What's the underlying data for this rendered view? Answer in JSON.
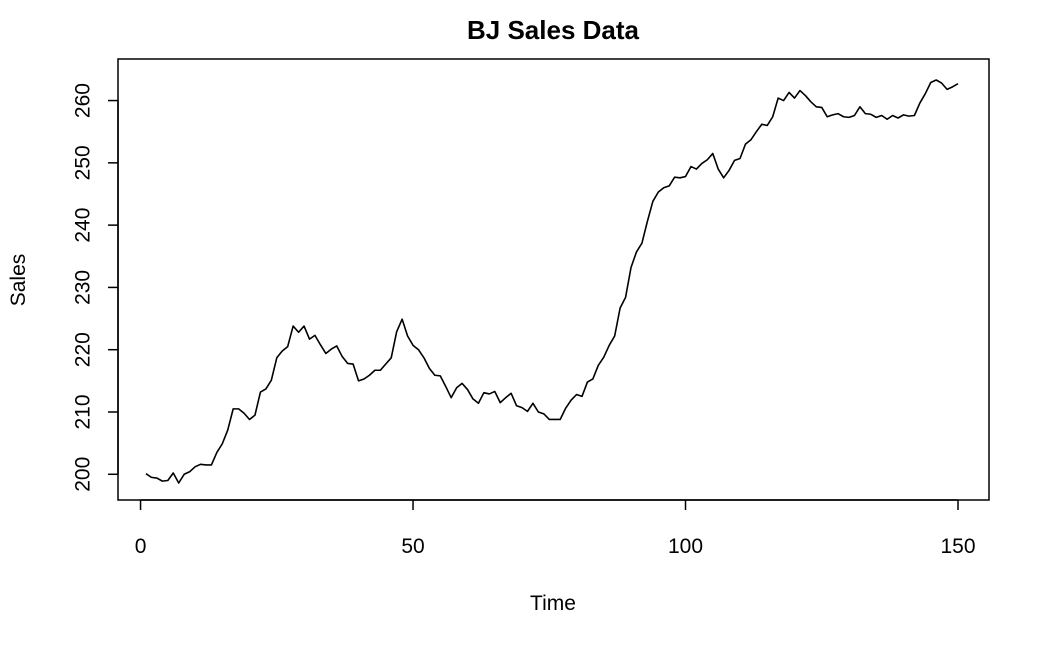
{
  "chart_data": {
    "type": "line",
    "title": "BJ Sales Data",
    "xlabel": "Time",
    "ylabel": "Sales",
    "xlim": [
      1,
      150
    ],
    "ylim": [
      198.6,
      263.3
    ],
    "x_ticks": [
      0,
      50,
      100,
      150
    ],
    "y_ticks": [
      200,
      210,
      220,
      230,
      240,
      250,
      260
    ],
    "grid": false,
    "legend": "none",
    "line_color": "#000000",
    "series": [
      {
        "x": [
          1,
          2,
          3,
          4,
          5,
          6,
          7,
          8,
          9,
          10,
          11,
          12,
          13,
          14,
          15,
          16,
          17,
          18,
          19,
          20,
          21,
          22,
          23,
          24,
          25,
          26,
          27,
          28,
          29,
          30,
          31,
          32,
          33,
          34,
          35,
          36,
          37,
          38,
          39,
          40,
          41,
          42,
          43,
          44,
          45,
          46,
          47,
          48,
          49,
          50,
          51,
          52,
          53,
          54,
          55,
          56,
          57,
          58,
          59,
          60,
          61,
          62,
          63,
          64,
          65,
          66,
          67,
          68,
          69,
          70,
          71,
          72,
          73,
          74,
          75,
          76,
          77,
          78,
          79,
          80,
          81,
          82,
          83,
          84,
          85,
          86,
          87,
          88,
          89,
          90,
          91,
          92,
          93,
          94,
          95,
          96,
          97,
          98,
          99,
          100,
          101,
          102,
          103,
          104,
          105,
          106,
          107,
          108,
          109,
          110,
          111,
          112,
          113,
          114,
          115,
          116,
          117,
          118,
          119,
          120,
          121,
          122,
          123,
          124,
          125,
          126,
          127,
          128,
          129,
          130,
          131,
          132,
          133,
          134,
          135,
          136,
          137,
          138,
          139,
          140,
          141,
          142,
          143,
          144,
          145,
          146,
          147,
          148,
          149,
          150
        ],
        "values": [
          200.1,
          199.5,
          199.4,
          198.9,
          199.0,
          200.2,
          198.6,
          200.0,
          200.4,
          201.2,
          201.6,
          201.5,
          201.5,
          203.5,
          204.9,
          207.1,
          210.5,
          210.5,
          209.8,
          208.8,
          209.5,
          213.2,
          213.7,
          215.1,
          218.7,
          219.8,
          220.5,
          223.8,
          222.8,
          223.8,
          221.7,
          222.3,
          220.8,
          219.4,
          220.1,
          220.6,
          218.9,
          217.8,
          217.7,
          215.0,
          215.3,
          215.9,
          216.7,
          216.7,
          217.7,
          218.7,
          222.9,
          224.9,
          222.2,
          220.7,
          220.0,
          218.7,
          217.0,
          215.9,
          215.8,
          214.1,
          212.3,
          213.9,
          214.6,
          213.6,
          212.1,
          211.4,
          213.1,
          212.9,
          213.3,
          211.5,
          212.3,
          213.0,
          211.0,
          210.7,
          210.1,
          211.4,
          210.0,
          209.7,
          208.8,
          208.8,
          208.8,
          210.6,
          211.9,
          212.8,
          212.5,
          214.8,
          215.3,
          217.5,
          218.8,
          220.7,
          222.2,
          226.7,
          228.4,
          233.2,
          235.7,
          237.1,
          240.6,
          243.8,
          245.3,
          246.0,
          246.3,
          247.7,
          247.6,
          247.8,
          249.4,
          249.0,
          249.9,
          250.5,
          251.5,
          249.0,
          247.6,
          248.8,
          250.4,
          250.7,
          253.0,
          253.7,
          255.0,
          256.2,
          256.0,
          257.4,
          260.4,
          260.0,
          261.3,
          260.4,
          261.6,
          260.8,
          259.8,
          259.0,
          258.9,
          257.4,
          257.7,
          257.9,
          257.4,
          257.3,
          257.6,
          259.0,
          257.9,
          257.8,
          257.3,
          257.6,
          257.0,
          257.6,
          257.2,
          257.7,
          257.5,
          257.6,
          259.6,
          261.1,
          262.9,
          263.3,
          262.8,
          261.8,
          262.2,
          262.7
        ]
      }
    ]
  }
}
